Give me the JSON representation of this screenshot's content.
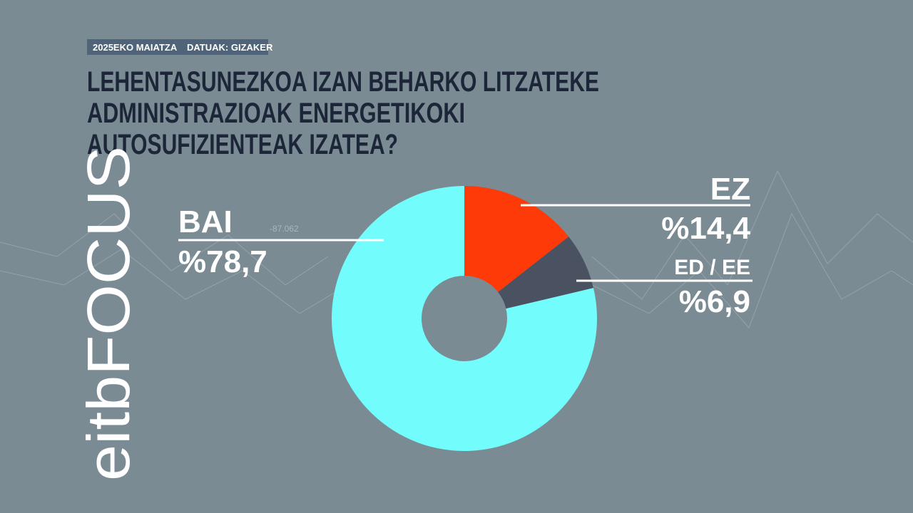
{
  "chart_data": {
    "type": "pie",
    "date_label": "2025EKO MAIATZA",
    "source": "DATUAK: GIZAKER",
    "title": [
      "LEHENTASUNEZKOA IZAN BEHARKO LITZATEKE",
      "ADMINISTRAZIOAK ENERGETIKOKI",
      "AUTOSUFIZIENTEAK IZATEA?"
    ],
    "categories": [
      "EZ",
      "ED / EE",
      "BAI"
    ],
    "values": [
      14.4,
      6.9,
      78.7
    ],
    "value_labels": [
      "%14,4",
      "%6,9",
      "%78,7"
    ],
    "colors": [
      "#fe3a08",
      "#4a5262",
      "#72fcfb"
    ],
    "donut": true,
    "background_label": "-87.062",
    "logo": "eitbFOCUS"
  }
}
